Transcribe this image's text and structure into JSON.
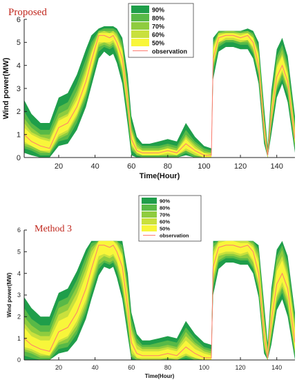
{
  "colors": {
    "band_90": "#1f9e4a",
    "band_80": "#58b947",
    "band_70": "#8fcc3f",
    "band_60": "#c9e03d",
    "band_50": "#f8f63a",
    "observation": "#ff7a6e",
    "title": "#c0261c"
  },
  "chart_data": [
    {
      "type": "area",
      "title": "Proposed",
      "xlabel": "Time(Hour)",
      "ylabel": "Wind power(MW)",
      "xlim": [
        1,
        150
      ],
      "ylim": [
        0,
        6
      ],
      "xticks": [
        "20",
        "40",
        "60",
        "80",
        "100",
        "120",
        "140"
      ],
      "yticks": [
        "0",
        "1",
        "2",
        "3",
        "4",
        "5",
        "6"
      ],
      "legend": [
        "90%",
        "80%",
        "70%",
        "60%",
        "50%",
        "observation"
      ],
      "legend_placement": "top-center",
      "grid": false,
      "x": [
        1,
        5,
        10,
        15,
        20,
        25,
        30,
        35,
        38,
        42,
        45,
        48,
        50,
        52,
        55,
        58,
        60,
        63,
        66,
        70,
        75,
        80,
        85,
        90,
        95,
        100,
        104,
        105,
        108,
        112,
        116,
        120,
        124,
        127,
        130,
        133,
        135,
        137,
        140,
        143,
        146,
        150
      ],
      "observation": [
        1.0,
        0.7,
        0.5,
        0.4,
        1.3,
        1.5,
        2.2,
        3.3,
        4.2,
        5.3,
        5.3,
        5.2,
        5.3,
        5.0,
        4.3,
        2.4,
        0.8,
        0.3,
        0.2,
        0.2,
        0.2,
        0.3,
        0.2,
        0.6,
        0.3,
        0.1,
        0.1,
        4.3,
        5.2,
        5.3,
        5.3,
        5.2,
        5.3,
        5.0,
        4.0,
        1.2,
        0.1,
        1.8,
        3.5,
        4.0,
        3.3,
        0.8
      ],
      "series": [
        {
          "name": "90%",
          "lower": [
            0.2,
            0.1,
            0.0,
            0.0,
            0.5,
            0.6,
            1.2,
            2.2,
            3.1,
            4.3,
            4.6,
            4.4,
            4.5,
            4.1,
            3.2,
            1.4,
            0.1,
            0.0,
            0.0,
            0.0,
            0.0,
            0.0,
            0.0,
            0.1,
            0.0,
            0.0,
            0.0,
            3.4,
            4.6,
            4.8,
            4.8,
            4.7,
            4.7,
            4.3,
            3.2,
            0.6,
            0.0,
            1.0,
            2.6,
            3.2,
            2.4,
            0.2
          ],
          "upper": [
            2.5,
            1.9,
            1.5,
            1.5,
            2.6,
            2.8,
            3.6,
            4.7,
            5.3,
            5.6,
            5.7,
            5.7,
            5.7,
            5.6,
            5.2,
            3.6,
            1.8,
            0.9,
            0.6,
            0.6,
            0.7,
            0.8,
            0.7,
            1.5,
            0.9,
            0.5,
            0.4,
            5.2,
            5.5,
            5.5,
            5.5,
            5.5,
            5.6,
            5.5,
            5.0,
            2.2,
            0.5,
            2.9,
            4.7,
            5.2,
            4.4,
            1.8
          ]
        },
        {
          "name": "80%",
          "lower": [
            0.4,
            0.3,
            0.1,
            0.1,
            0.7,
            0.8,
            1.5,
            2.5,
            3.4,
            4.6,
            4.8,
            4.7,
            4.8,
            4.4,
            3.5,
            1.7,
            0.3,
            0.1,
            0.0,
            0.0,
            0.0,
            0.0,
            0.0,
            0.2,
            0.0,
            0.0,
            0.0,
            3.7,
            4.8,
            5.0,
            5.0,
            4.9,
            4.9,
            4.5,
            3.5,
            0.8,
            0.0,
            1.3,
            2.9,
            3.4,
            2.7,
            0.4
          ],
          "upper": [
            2.0,
            1.5,
            1.2,
            1.2,
            2.2,
            2.4,
            3.2,
            4.3,
            5.0,
            5.5,
            5.6,
            5.6,
            5.6,
            5.5,
            5.0,
            3.2,
            1.5,
            0.7,
            0.5,
            0.5,
            0.5,
            0.6,
            0.5,
            1.2,
            0.7,
            0.4,
            0.3,
            5.0,
            5.5,
            5.5,
            5.5,
            5.5,
            5.5,
            5.4,
            4.8,
            1.9,
            0.4,
            2.6,
            4.4,
            4.9,
            4.1,
            1.5
          ]
        },
        {
          "name": "70%",
          "lower": [
            0.5,
            0.4,
            0.2,
            0.2,
            0.8,
            1.0,
            1.7,
            2.7,
            3.6,
            4.8,
            4.9,
            4.8,
            4.9,
            4.6,
            3.7,
            1.9,
            0.4,
            0.1,
            0.1,
            0.1,
            0.1,
            0.1,
            0.1,
            0.3,
            0.1,
            0.0,
            0.0,
            3.9,
            4.9,
            5.1,
            5.1,
            5.0,
            5.0,
            4.6,
            3.6,
            0.9,
            0.0,
            1.4,
            3.0,
            3.6,
            2.9,
            0.5
          ],
          "upper": [
            1.7,
            1.3,
            1.0,
            1.0,
            1.9,
            2.1,
            2.9,
            4.0,
            4.8,
            5.5,
            5.5,
            5.5,
            5.5,
            5.4,
            4.8,
            3.0,
            1.3,
            0.6,
            0.4,
            0.4,
            0.4,
            0.5,
            0.4,
            1.0,
            0.6,
            0.3,
            0.2,
            4.9,
            5.4,
            5.5,
            5.5,
            5.4,
            5.5,
            5.3,
            4.6,
            1.7,
            0.3,
            2.4,
            4.2,
            4.7,
            3.9,
            1.3
          ]
        },
        {
          "name": "60%",
          "lower": [
            0.6,
            0.5,
            0.3,
            0.2,
            0.9,
            1.1,
            1.8,
            2.8,
            3.7,
            4.9,
            5.0,
            4.9,
            5.0,
            4.7,
            3.8,
            2.0,
            0.5,
            0.2,
            0.1,
            0.1,
            0.1,
            0.1,
            0.1,
            0.3,
            0.1,
            0.0,
            0.0,
            4.0,
            5.0,
            5.1,
            5.1,
            5.0,
            5.1,
            4.7,
            3.7,
            1.0,
            0.0,
            1.5,
            3.1,
            3.7,
            3.0,
            0.6
          ],
          "upper": [
            1.5,
            1.1,
            0.9,
            0.8,
            1.7,
            1.9,
            2.7,
            3.8,
            4.6,
            5.4,
            5.5,
            5.4,
            5.5,
            5.3,
            4.7,
            2.8,
            1.2,
            0.5,
            0.3,
            0.3,
            0.3,
            0.4,
            0.3,
            0.9,
            0.5,
            0.2,
            0.2,
            4.8,
            5.4,
            5.4,
            5.4,
            5.4,
            5.4,
            5.2,
            4.5,
            1.6,
            0.2,
            2.2,
            4.0,
            4.5,
            3.7,
            1.2
          ]
        },
        {
          "name": "50%",
          "lower": [
            0.7,
            0.5,
            0.3,
            0.3,
            1.0,
            1.2,
            1.9,
            2.9,
            3.8,
            5.0,
            5.0,
            5.0,
            5.1,
            4.8,
            3.9,
            2.1,
            0.6,
            0.2,
            0.1,
            0.1,
            0.1,
            0.2,
            0.1,
            0.4,
            0.2,
            0.0,
            0.0,
            4.1,
            5.0,
            5.2,
            5.2,
            5.1,
            5.1,
            4.8,
            3.8,
            1.0,
            0.0,
            1.6,
            3.2,
            3.8,
            3.1,
            0.6
          ],
          "upper": [
            1.3,
            1.0,
            0.8,
            0.7,
            1.6,
            1.8,
            2.5,
            3.6,
            4.5,
            5.4,
            5.4,
            5.4,
            5.4,
            5.2,
            4.6,
            2.7,
            1.1,
            0.4,
            0.3,
            0.3,
            0.3,
            0.4,
            0.3,
            0.8,
            0.4,
            0.2,
            0.1,
            4.7,
            5.3,
            5.4,
            5.4,
            5.3,
            5.4,
            5.2,
            4.4,
            1.5,
            0.2,
            2.1,
            3.9,
            4.4,
            3.6,
            1.1
          ]
        }
      ]
    },
    {
      "type": "area",
      "title": "Method 3",
      "xlabel": "Time(Hour)",
      "ylabel": "Wind power(MW)",
      "xlim": [
        1,
        150
      ],
      "ylim": [
        0,
        6
      ],
      "xticks": [
        "20",
        "40",
        "60",
        "80",
        "100",
        "120",
        "140"
      ],
      "yticks": [
        "0",
        "1",
        "2",
        "3",
        "4",
        "5",
        "6"
      ],
      "legend": [
        "90%",
        "80%",
        "70%",
        "60%",
        "50%",
        "observation"
      ],
      "legend_placement": "top-center",
      "grid": false,
      "x": [
        1,
        5,
        10,
        15,
        20,
        25,
        30,
        35,
        38,
        42,
        45,
        48,
        50,
        52,
        55,
        58,
        60,
        63,
        66,
        70,
        75,
        80,
        85,
        90,
        95,
        100,
        104,
        105,
        108,
        112,
        116,
        120,
        124,
        127,
        130,
        133,
        135,
        137,
        140,
        143,
        146,
        150
      ],
      "observation": [
        1.0,
        0.7,
        0.5,
        0.4,
        1.3,
        1.5,
        2.2,
        3.3,
        4.2,
        5.3,
        5.3,
        5.2,
        5.3,
        5.0,
        4.3,
        2.4,
        0.8,
        0.3,
        0.2,
        0.2,
        0.2,
        0.3,
        0.2,
        0.6,
        0.3,
        0.1,
        0.1,
        4.3,
        5.2,
        5.3,
        5.3,
        5.2,
        5.3,
        5.0,
        4.0,
        1.2,
        0.1,
        1.8,
        3.5,
        4.0,
        3.3,
        0.8
      ],
      "series": [
        {
          "name": "90%",
          "lower": [
            0.0,
            0.0,
            0.0,
            0.0,
            0.3,
            0.4,
            0.9,
            1.9,
            2.8,
            3.9,
            4.3,
            4.2,
            4.3,
            3.8,
            2.8,
            1.1,
            0.0,
            0.0,
            0.0,
            0.0,
            0.0,
            0.0,
            0.0,
            0.0,
            0.0,
            0.0,
            0.0,
            3.0,
            4.2,
            4.5,
            4.5,
            4.4,
            4.4,
            4.0,
            2.9,
            0.3,
            0.0,
            0.7,
            2.3,
            2.8,
            2.0,
            0.0
          ],
          "upper": [
            2.9,
            2.4,
            2.0,
            2.0,
            3.1,
            3.3,
            4.1,
            5.1,
            5.5,
            5.5,
            5.5,
            5.5,
            5.5,
            5.5,
            5.5,
            4.0,
            2.2,
            1.2,
            0.9,
            0.9,
            1.0,
            1.1,
            1.0,
            1.8,
            1.2,
            0.8,
            0.7,
            5.5,
            5.5,
            5.5,
            5.5,
            5.5,
            5.5,
            5.5,
            5.3,
            2.6,
            0.8,
            3.3,
            5.1,
            5.5,
            4.8,
            2.2
          ]
        },
        {
          "name": "80%",
          "lower": [
            0.2,
            0.1,
            0.0,
            0.0,
            0.5,
            0.6,
            1.2,
            2.2,
            3.1,
            4.2,
            4.5,
            4.4,
            4.5,
            4.1,
            3.1,
            1.4,
            0.1,
            0.0,
            0.0,
            0.0,
            0.0,
            0.0,
            0.0,
            0.1,
            0.0,
            0.0,
            0.0,
            3.3,
            4.5,
            4.7,
            4.7,
            4.6,
            4.6,
            4.2,
            3.2,
            0.5,
            0.0,
            1.0,
            2.6,
            3.1,
            2.3,
            0.2
          ],
          "upper": [
            2.4,
            1.9,
            1.6,
            1.6,
            2.7,
            2.9,
            3.7,
            4.8,
            5.4,
            5.5,
            5.5,
            5.5,
            5.5,
            5.5,
            5.3,
            3.6,
            1.9,
            1.0,
            0.7,
            0.7,
            0.8,
            0.9,
            0.8,
            1.5,
            1.0,
            0.6,
            0.5,
            5.4,
            5.5,
            5.5,
            5.5,
            5.5,
            5.5,
            5.5,
            5.1,
            2.3,
            0.6,
            3.0,
            4.8,
            5.3,
            4.5,
            1.9
          ]
        },
        {
          "name": "70%",
          "lower": [
            0.4,
            0.3,
            0.1,
            0.1,
            0.7,
            0.8,
            1.4,
            2.4,
            3.3,
            4.4,
            4.6,
            4.5,
            4.6,
            4.3,
            3.3,
            1.6,
            0.2,
            0.0,
            0.0,
            0.0,
            0.0,
            0.0,
            0.0,
            0.2,
            0.0,
            0.0,
            0.0,
            3.5,
            4.6,
            4.8,
            4.8,
            4.7,
            4.7,
            4.3,
            3.3,
            0.6,
            0.0,
            1.1,
            2.7,
            3.3,
            2.5,
            0.3
          ],
          "upper": [
            2.0,
            1.6,
            1.3,
            1.3,
            2.4,
            2.6,
            3.4,
            4.5,
            5.2,
            5.5,
            5.5,
            5.5,
            5.5,
            5.5,
            5.1,
            3.3,
            1.6,
            0.8,
            0.6,
            0.6,
            0.6,
            0.7,
            0.6,
            1.3,
            0.8,
            0.5,
            0.4,
            5.2,
            5.5,
            5.5,
            5.5,
            5.5,
            5.5,
            5.4,
            4.9,
            2.0,
            0.5,
            2.8,
            4.6,
            5.1,
            4.2,
            1.7
          ]
        },
        {
          "name": "60%",
          "lower": [
            0.5,
            0.4,
            0.2,
            0.2,
            0.8,
            1.0,
            1.6,
            2.6,
            3.5,
            4.6,
            4.8,
            4.7,
            4.8,
            4.5,
            3.5,
            1.8,
            0.3,
            0.1,
            0.0,
            0.0,
            0.0,
            0.1,
            0.0,
            0.2,
            0.1,
            0.0,
            0.0,
            3.7,
            4.8,
            4.9,
            4.9,
            4.8,
            4.9,
            4.5,
            3.5,
            0.8,
            0.0,
            1.3,
            2.9,
            3.4,
            2.7,
            0.4
          ],
          "upper": [
            1.7,
            1.3,
            1.1,
            1.1,
            2.1,
            2.3,
            3.1,
            4.2,
            5.0,
            5.5,
            5.5,
            5.5,
            5.5,
            5.4,
            4.9,
            3.1,
            1.4,
            0.7,
            0.5,
            0.5,
            0.5,
            0.6,
            0.5,
            1.1,
            0.7,
            0.4,
            0.3,
            5.0,
            5.5,
            5.5,
            5.5,
            5.5,
            5.5,
            5.3,
            4.7,
            1.8,
            0.4,
            2.5,
            4.3,
            4.8,
            4.0,
            1.5
          ]
        },
        {
          "name": "50%",
          "lower": [
            0.6,
            0.5,
            0.3,
            0.2,
            0.9,
            1.1,
            1.8,
            2.8,
            3.7,
            4.8,
            4.9,
            4.8,
            4.9,
            4.6,
            3.7,
            2.0,
            0.5,
            0.1,
            0.1,
            0.1,
            0.1,
            0.1,
            0.1,
            0.3,
            0.1,
            0.0,
            0.0,
            3.9,
            4.9,
            5.0,
            5.0,
            4.9,
            5.0,
            4.6,
            3.6,
            0.9,
            0.0,
            1.4,
            3.0,
            3.6,
            2.9,
            0.5
          ],
          "upper": [
            1.5,
            1.1,
            0.9,
            0.9,
            1.8,
            2.0,
            2.8,
            3.9,
            4.7,
            5.5,
            5.5,
            5.5,
            5.5,
            5.3,
            4.8,
            2.9,
            1.2,
            0.5,
            0.4,
            0.4,
            0.4,
            0.5,
            0.4,
            0.9,
            0.5,
            0.3,
            0.2,
            4.8,
            5.4,
            5.5,
            5.5,
            5.4,
            5.4,
            5.2,
            4.5,
            1.6,
            0.3,
            2.3,
            4.1,
            4.6,
            3.8,
            1.3
          ]
        }
      ]
    }
  ]
}
